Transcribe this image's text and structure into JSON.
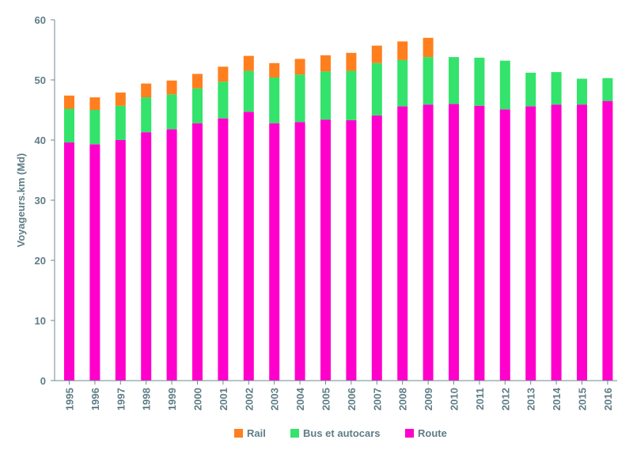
{
  "chart_data": {
    "type": "bar",
    "stacked": true,
    "categories": [
      "1995",
      "1996",
      "1997",
      "1998",
      "1999",
      "2000",
      "2001",
      "2002",
      "2003",
      "2004",
      "2005",
      "2006",
      "2007",
      "2008",
      "2009",
      "2010",
      "2011",
      "2012",
      "2013",
      "2014",
      "2015",
      "2016"
    ],
    "series": [
      {
        "name": "Route",
        "color": "#ff00cc",
        "values": [
          39.6,
          39.3,
          40.0,
          41.3,
          41.8,
          42.8,
          43.6,
          44.7,
          42.8,
          43.0,
          43.4,
          43.3,
          44.1,
          45.6,
          45.9,
          46.0,
          45.7,
          45.1,
          45.6,
          45.9,
          45.9,
          46.5
        ]
      },
      {
        "name": "Bus et autocars",
        "color": "#33e36b",
        "values": [
          5.6,
          5.7,
          5.7,
          5.8,
          5.8,
          5.8,
          6.1,
          6.8,
          7.6,
          7.9,
          8.0,
          8.2,
          8.7,
          7.7,
          7.9,
          7.8,
          8.0,
          8.1,
          5.6,
          5.4,
          4.3,
          3.8
        ]
      },
      {
        "name": "Rail",
        "color": "#ff7f1f",
        "values": [
          2.2,
          2.1,
          2.2,
          2.3,
          2.3,
          2.4,
          2.5,
          2.5,
          2.4,
          2.6,
          2.7,
          3.0,
          2.9,
          3.1,
          3.2,
          0,
          0,
          0,
          0,
          0,
          0,
          0
        ]
      }
    ],
    "legend_order": [
      "Rail",
      "Bus et autocars",
      "Route"
    ],
    "title": "",
    "xlabel": "",
    "ylabel": "Voyageurs.km (Md)",
    "ylim": [
      0,
      60
    ],
    "yticks": [
      0,
      10,
      20,
      30,
      40,
      50,
      60
    ],
    "grid": false,
    "legend_position": "bottom"
  }
}
